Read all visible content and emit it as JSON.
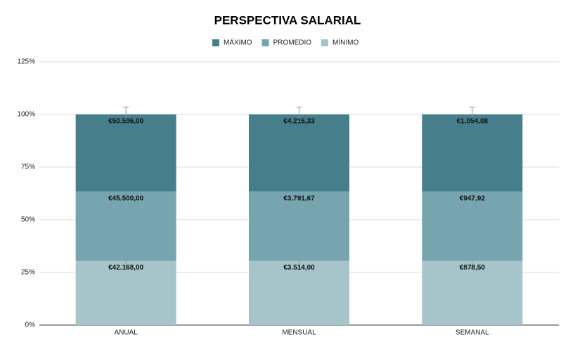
{
  "chart_data": {
    "type": "stacked_bar",
    "title": "PERSPECTIVA SALARIAL",
    "categories": [
      "ANUAL",
      "MENSUAL",
      "SEMANAL"
    ],
    "series": [
      {
        "name": "MÁXIMO",
        "color": "#467f8b",
        "values": [
          36.6,
          36.6,
          36.6
        ],
        "errors": [
          3.5,
          3.5,
          3.5
        ],
        "data_labels": [
          "€50.596,00",
          "€4.216,33",
          "€1.054,08"
        ]
      },
      {
        "name": "PROMEDIO",
        "color": "#76a5af",
        "values": [
          32.9,
          32.9,
          32.9
        ],
        "errors": [
          3.5,
          3.5,
          3.5
        ],
        "data_labels": [
          "€45.500,00",
          "€3.791,67",
          "€947,92"
        ]
      },
      {
        "name": "MÍNIMO",
        "color": "#a5c5ca",
        "values": [
          30.5,
          30.5,
          30.5
        ],
        "errors": [
          3.5,
          3.5,
          3.5
        ],
        "data_labels": [
          "€42.168,00",
          "€3.514,00",
          "€878,50"
        ]
      }
    ],
    "ylim": [
      0,
      125
    ],
    "yticks": [
      {
        "value": 0,
        "label": "0%"
      },
      {
        "value": 25,
        "label": "25%"
      },
      {
        "value": 50,
        "label": "50%"
      },
      {
        "value": 75,
        "label": "75%"
      },
      {
        "value": 100,
        "label": "100%"
      },
      {
        "value": 125,
        "label": "125%"
      }
    ],
    "grid": true,
    "legend": "top"
  }
}
